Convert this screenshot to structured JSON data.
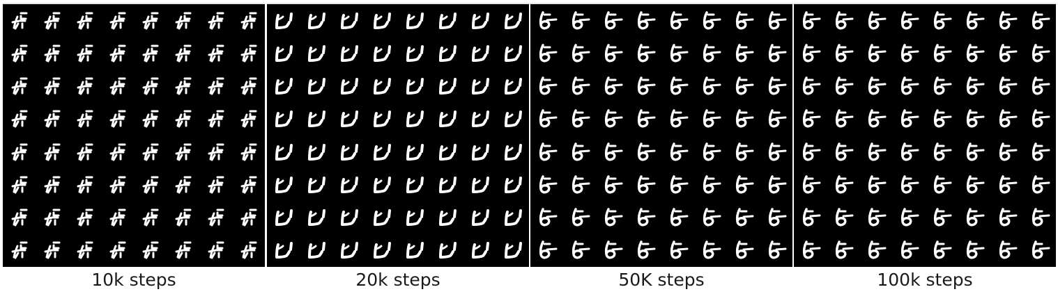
{
  "panels": [
    {
      "caption": "10k steps",
      "glyph": "glyph-10k"
    },
    {
      "caption": "20k steps",
      "glyph": "glyph-20k"
    },
    {
      "caption": "50K steps",
      "glyph": "glyph-50k"
    },
    {
      "caption": "100k steps",
      "glyph": "glyph-100k"
    }
  ],
  "grid": {
    "rows": 8,
    "cols": 8
  },
  "colors": {
    "panel_bg": "#000000",
    "stroke": "#ffffff",
    "caption": "#1a1a1a"
  }
}
